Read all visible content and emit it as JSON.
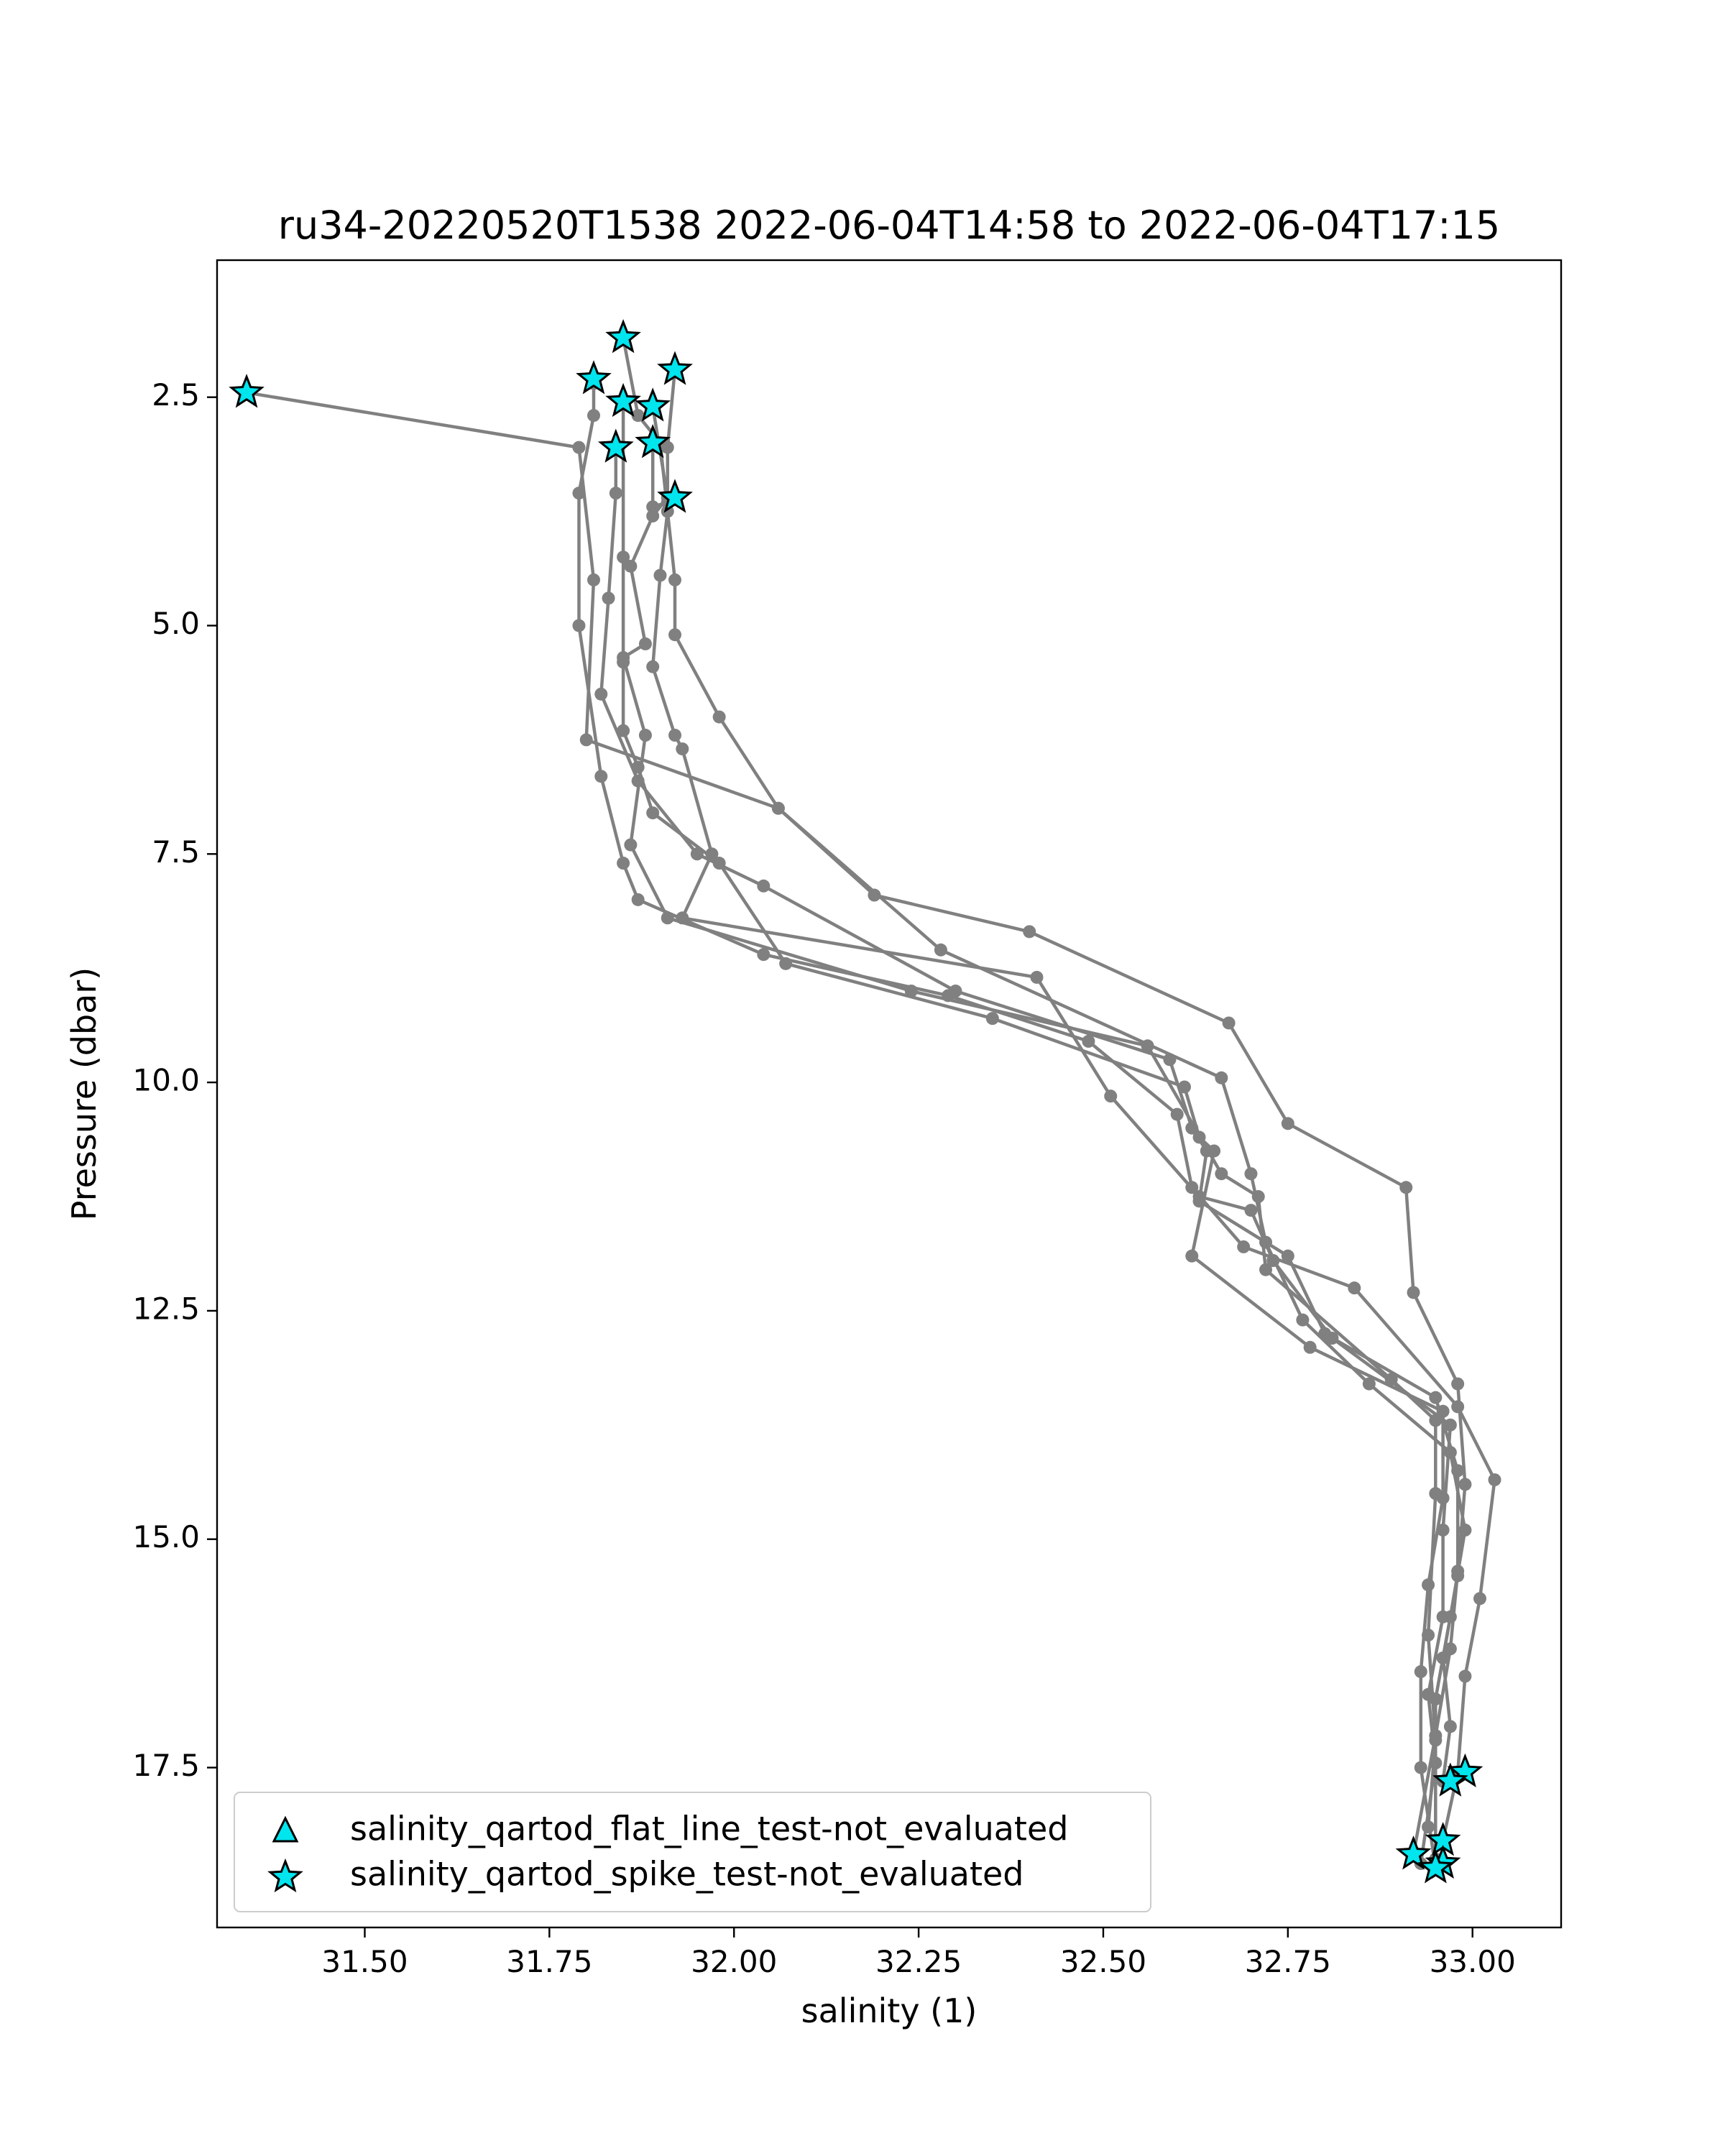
{
  "chart_data": {
    "type": "scatter",
    "title": "ru34-20220520T1538 2022-06-04T14:58 to 2022-06-04T17:15",
    "xlabel": "salinity (1)",
    "ylabel": "Pressure (dbar)",
    "xlim": [
      31.3,
      33.12
    ],
    "ylim": [
      19.25,
      1.0
    ],
    "y_inverted": true,
    "grid": false,
    "xticks": [
      "31.50",
      "31.75",
      "32.00",
      "32.25",
      "32.50",
      "32.75",
      "33.00"
    ],
    "yticks": [
      "2.5",
      "5.0",
      "7.5",
      "10.0",
      "12.5",
      "15.0",
      "17.5"
    ],
    "line_color": "#808080",
    "marker_color": "#00e5ee",
    "legend_position": "lower-left",
    "series": [
      {
        "profile": 1,
        "points": [
          [
            31.34,
            2.45
          ],
          [
            31.79,
            3.05
          ],
          [
            31.81,
            4.5
          ],
          [
            31.8,
            6.25
          ],
          [
            32.06,
            7.0
          ],
          [
            32.19,
            7.95
          ],
          [
            32.4,
            8.35
          ],
          [
            32.67,
            9.35
          ],
          [
            32.75,
            10.45
          ],
          [
            32.91,
            11.15
          ],
          [
            32.92,
            12.3
          ],
          [
            32.98,
            13.3
          ],
          [
            32.99,
            14.4
          ],
          [
            32.98,
            15.4
          ],
          [
            32.96,
            16.3
          ],
          [
            32.97,
            17.05
          ],
          [
            32.96,
            17.65
          ]
        ]
      },
      {
        "profile": 2,
        "points": [
          [
            31.81,
            2.35
          ],
          [
            31.81,
            2.7
          ],
          [
            31.79,
            3.55
          ],
          [
            31.79,
            5.0
          ],
          [
            31.82,
            6.65
          ],
          [
            31.85,
            7.6
          ],
          [
            31.87,
            8.0
          ],
          [
            32.04,
            8.6
          ],
          [
            32.29,
            9.05
          ],
          [
            32.48,
            9.55
          ],
          [
            32.6,
            10.35
          ],
          [
            32.62,
            11.15
          ],
          [
            32.69,
            11.8
          ],
          [
            32.84,
            12.25
          ],
          [
            32.98,
            13.55
          ],
          [
            33.03,
            14.35
          ],
          [
            33.01,
            15.65
          ],
          [
            32.99,
            16.5
          ],
          [
            32.98,
            17.55
          ],
          [
            32.96,
            18.3
          ]
        ]
      },
      {
        "profile": 3,
        "points": [
          [
            31.85,
            1.85
          ],
          [
            31.87,
            2.7
          ],
          [
            31.9,
            3.0
          ],
          [
            31.92,
            4.5
          ],
          [
            31.92,
            5.1
          ],
          [
            31.98,
            6.0
          ],
          [
            32.06,
            7.0
          ],
          [
            32.28,
            8.55
          ],
          [
            32.66,
            9.95
          ],
          [
            32.7,
            11.0
          ],
          [
            32.72,
            11.75
          ],
          [
            32.77,
            12.6
          ],
          [
            32.86,
            13.3
          ],
          [
            32.97,
            14.05
          ],
          [
            32.99,
            14.9
          ],
          [
            32.97,
            15.85
          ],
          [
            32.95,
            16.75
          ],
          [
            32.95,
            18.5
          ]
        ]
      },
      {
        "profile": 4,
        "points": [
          [
            31.84,
            3.05
          ],
          [
            31.84,
            3.55
          ],
          [
            31.83,
            4.7
          ],
          [
            31.82,
            5.75
          ],
          [
            31.87,
            6.7
          ],
          [
            31.95,
            7.5
          ],
          [
            32.04,
            7.85
          ],
          [
            32.3,
            9.0
          ],
          [
            32.59,
            9.75
          ],
          [
            32.62,
            10.5
          ],
          [
            32.64,
            10.75
          ],
          [
            32.63,
            11.3
          ],
          [
            32.75,
            11.9
          ],
          [
            32.8,
            12.75
          ],
          [
            32.95,
            13.45
          ],
          [
            32.98,
            14.25
          ],
          [
            32.98,
            15.35
          ],
          [
            32.97,
            16.2
          ],
          [
            32.95,
            17.15
          ],
          [
            32.92,
            18.45
          ]
        ]
      },
      {
        "profile": 5,
        "points": [
          [
            31.85,
            2.55
          ],
          [
            31.85,
            4.25
          ],
          [
            31.85,
            5.4
          ],
          [
            31.85,
            6.15
          ],
          [
            31.87,
            6.55
          ],
          [
            31.89,
            7.05
          ],
          [
            31.98,
            7.6
          ],
          [
            32.07,
            8.7
          ],
          [
            32.35,
            9.3
          ],
          [
            32.61,
            10.05
          ],
          [
            32.63,
            10.6
          ],
          [
            32.65,
            10.75
          ],
          [
            32.62,
            11.9
          ],
          [
            32.78,
            12.9
          ],
          [
            32.96,
            13.6
          ],
          [
            32.96,
            14.55
          ],
          [
            32.94,
            15.5
          ],
          [
            32.93,
            16.45
          ],
          [
            32.93,
            17.5
          ],
          [
            32.95,
            18.6
          ]
        ]
      },
      {
        "profile": 6,
        "points": [
          [
            31.89,
            2.6
          ],
          [
            31.91,
            3.6
          ],
          [
            31.89,
            3.8
          ],
          [
            31.86,
            4.35
          ],
          [
            31.88,
            5.2
          ],
          [
            31.85,
            5.35
          ],
          [
            31.88,
            6.2
          ],
          [
            31.86,
            7.4
          ],
          [
            31.91,
            8.2
          ],
          [
            32.24,
            9.0
          ],
          [
            32.56,
            9.6
          ],
          [
            32.66,
            11.0
          ],
          [
            32.71,
            11.25
          ],
          [
            32.72,
            12.05
          ],
          [
            32.89,
            13.25
          ],
          [
            32.95,
            13.7
          ],
          [
            32.95,
            14.5
          ],
          [
            32.94,
            16.05
          ],
          [
            32.95,
            17.2
          ],
          [
            32.94,
            18.15
          ]
        ]
      },
      {
        "profile": 7,
        "points": [
          [
            31.92,
            2.2
          ],
          [
            31.91,
            3.05
          ],
          [
            31.91,
            3.75
          ],
          [
            31.9,
            4.45
          ],
          [
            31.89,
            5.45
          ],
          [
            31.92,
            6.2
          ],
          [
            31.93,
            6.35
          ],
          [
            31.97,
            7.5
          ],
          [
            31.93,
            8.2
          ],
          [
            32.41,
            8.85
          ],
          [
            32.51,
            10.15
          ],
          [
            32.63,
            11.25
          ],
          [
            32.7,
            11.4
          ],
          [
            32.73,
            11.95
          ],
          [
            32.81,
            12.8
          ],
          [
            32.97,
            13.75
          ],
          [
            32.96,
            14.9
          ],
          [
            32.96,
            15.85
          ],
          [
            32.94,
            16.7
          ],
          [
            32.95,
            17.45
          ],
          [
            32.93,
            18.55
          ]
        ]
      },
      {
        "profile": 8,
        "points": [
          [
            31.89,
            3.0
          ],
          [
            31.89,
            3.7
          ],
          [
            31.91,
            3.65
          ]
        ]
      }
    ],
    "markers": {
      "flat_line_test": {
        "label": "salinity_qartod_flat_line_test-not_evaluated",
        "symbol": "triangle",
        "points": []
      },
      "spike_test": {
        "label": "salinity_qartod_spike_test-not_evaluated",
        "symbol": "star",
        "points": [
          [
            31.34,
            2.45
          ],
          [
            31.81,
            2.3
          ],
          [
            31.85,
            1.85
          ],
          [
            31.85,
            2.55
          ],
          [
            31.92,
            2.2
          ],
          [
            31.89,
            2.6
          ],
          [
            31.84,
            3.05
          ],
          [
            31.89,
            3.0
          ],
          [
            31.92,
            3.6
          ],
          [
            32.99,
            17.55
          ],
          [
            32.97,
            17.65
          ],
          [
            32.96,
            18.3
          ],
          [
            32.92,
            18.45
          ],
          [
            32.96,
            18.55
          ],
          [
            32.95,
            18.6
          ]
        ]
      }
    }
  }
}
